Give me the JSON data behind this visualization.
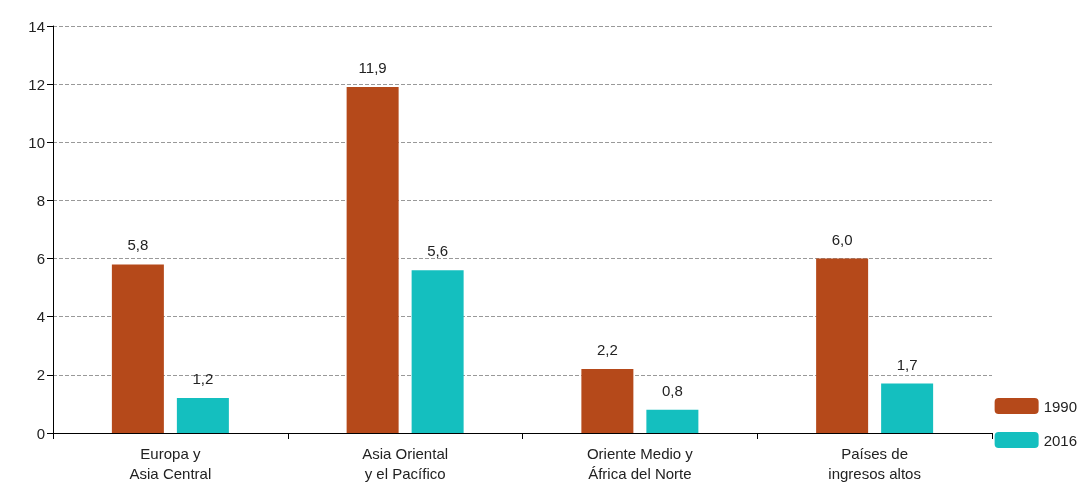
{
  "chart_data": {
    "type": "bar",
    "categories": [
      "Europa y\nAsia Central",
      "Asia Oriental\ny el Pacífico",
      "Oriente Medio y\nÁfrica del Norte",
      "Países de\ningresos altos"
    ],
    "series": [
      {
        "name": "1990",
        "color": "#b5491a",
        "values": [
          5.8,
          11.9,
          2.2,
          6.0
        ],
        "value_labels": [
          "5,8",
          "11,9",
          "2,2",
          "6,0"
        ]
      },
      {
        "name": "2016",
        "color": "#14bfbf",
        "values": [
          1.2,
          5.6,
          0.8,
          1.7
        ],
        "value_labels": [
          "1,2",
          "5,6",
          "0,8",
          "1,7"
        ]
      }
    ],
    "ylim": [
      0,
      14
    ],
    "yticks": [
      0,
      2,
      4,
      6,
      8,
      10,
      12,
      14
    ],
    "grid": "y",
    "legend": "bottom right"
  }
}
